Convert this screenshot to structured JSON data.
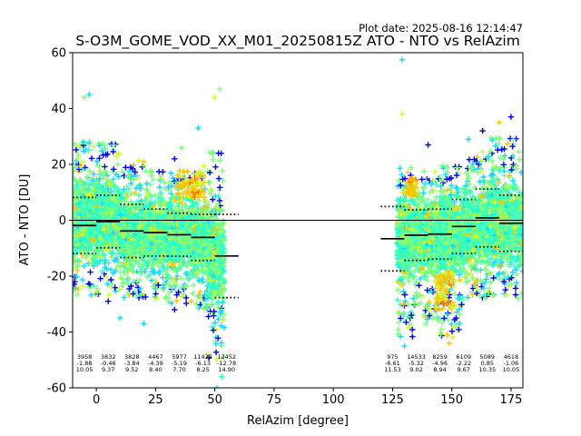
{
  "chart_data": {
    "type": "scatter",
    "title": "S-O3M_GOME_VOD_XX_M01_20250815Z ATO - NTO vs RelAzim",
    "plot_date": "Plot date: 2025-08-16 12:14:47",
    "xlabel": "RelAzim [degree]",
    "ylabel": "ATO - NTO [DU]",
    "xlim": [
      -10,
      180
    ],
    "ylim": [
      -60,
      60
    ],
    "xticks": [
      0,
      25,
      50,
      75,
      100,
      125,
      150,
      175
    ],
    "yticks": [
      -60,
      -40,
      -20,
      0,
      20,
      40,
      60
    ],
    "grid": false,
    "marker": "+",
    "colormap": [
      "#00007f",
      "#0000ff",
      "#0080ff",
      "#15d8ff",
      "#28ffce",
      "#7dff7a",
      "#ceff28",
      "#ffc400",
      "#ff6800",
      "#7f0000"
    ],
    "scatter_envelopes": [
      {
        "x": [
          -10,
          0
        ],
        "center": 0,
        "low": -27,
        "high": 30,
        "spread": 0.4
      },
      {
        "x": [
          0,
          10
        ],
        "center": 0,
        "low": -27,
        "high": 28,
        "spread": 0.4
      },
      {
        "x": [
          10,
          20
        ],
        "center": -4,
        "low": -28,
        "high": 22,
        "spread": 0.4
      },
      {
        "x": [
          20,
          30
        ],
        "center": -4,
        "low": -28,
        "high": 18,
        "spread": 0.4
      },
      {
        "x": [
          30,
          40
        ],
        "center": -5,
        "low": -30,
        "high": 18,
        "spread": 0.4
      },
      {
        "x": [
          40,
          47
        ],
        "center": -6,
        "low": -32,
        "high": 20,
        "spread": 0.4
      },
      {
        "x": [
          47,
          54
        ],
        "center": -13,
        "low": -50,
        "high": 25,
        "spread": 0.4
      },
      {
        "x": [
          127,
          135
        ],
        "center": -6,
        "low": -42,
        "high": 20,
        "spread": 0.4
      },
      {
        "x": [
          135,
          145
        ],
        "center": -5,
        "low": -36,
        "high": 18,
        "spread": 0.4
      },
      {
        "x": [
          145,
          155
        ],
        "center": -5,
        "low": -42,
        "high": 20,
        "spread": 0.4
      },
      {
        "x": [
          155,
          165
        ],
        "center": -2,
        "low": -28,
        "high": 25,
        "spread": 0.4
      },
      {
        "x": [
          165,
          180
        ],
        "center": -1,
        "low": -27,
        "high": 30,
        "spread": 0.4
      }
    ],
    "outliers": [
      {
        "x": 129,
        "y": 57.5,
        "color": "#15d8ff"
      },
      {
        "x": -5,
        "y": 44,
        "color": "#7dff7a"
      },
      {
        "x": -3,
        "y": 45,
        "color": "#15d8ff"
      },
      {
        "x": 52,
        "y": 47,
        "color": "#7dff7a"
      },
      {
        "x": 50,
        "y": 44,
        "color": "#ceff28"
      },
      {
        "x": 43,
        "y": 33,
        "color": "#15d8ff"
      },
      {
        "x": 129,
        "y": 38,
        "color": "#ceff28"
      },
      {
        "x": 140,
        "y": 27,
        "color": "#0000ff"
      },
      {
        "x": 163,
        "y": 32,
        "color": "#00007f"
      },
      {
        "x": 175,
        "y": 37,
        "color": "#0000ff"
      },
      {
        "x": 170,
        "y": 35,
        "color": "#ffc400"
      },
      {
        "x": 139,
        "y": -37,
        "color": "#7dff7a"
      },
      {
        "x": 149,
        "y": -44,
        "color": "#ffc400"
      },
      {
        "x": 148,
        "y": -41,
        "color": "#ffc400"
      },
      {
        "x": 130,
        "y": -45,
        "color": "#15d8ff"
      },
      {
        "x": 133,
        "y": -34,
        "color": "#0000ff"
      },
      {
        "x": 10,
        "y": -35,
        "color": "#15d8ff"
      },
      {
        "x": 5,
        "y": -29,
        "color": "#0000ff"
      },
      {
        "x": 33,
        "y": -32,
        "color": "#0000ff"
      },
      {
        "x": 40,
        "y": -29,
        "color": "#ffc400"
      },
      {
        "x": 51,
        "y": -60,
        "color": "#15d8ff"
      },
      {
        "x": 53,
        "y": -56,
        "color": "#28ffce"
      },
      {
        "x": 20,
        "y": -37,
        "color": "#15d8ff"
      },
      {
        "x": 178,
        "y": -28,
        "color": "#7dff7a"
      },
      {
        "x": 167,
        "y": -27,
        "color": "#ceff28"
      },
      {
        "x": 33,
        "y": 22,
        "color": "#0000ff"
      },
      {
        "x": 36,
        "y": 26,
        "color": "#7dff7a"
      },
      {
        "x": 20,
        "y": 21,
        "color": "#ffc400"
      },
      {
        "x": 9,
        "y": 24,
        "color": "#ceff28"
      },
      {
        "x": 157,
        "y": 29,
        "color": "#15d8ff"
      }
    ],
    "yellow_clusters": [
      {
        "x": [
          34,
          46
        ],
        "y": [
          8,
          18
        ]
      },
      {
        "x": [
          143,
          151
        ],
        "y": [
          -32,
          -18
        ]
      },
      {
        "x": [
          131,
          135
        ],
        "y": [
          9,
          15
        ]
      }
    ],
    "bins": [
      {
        "x_start": -10,
        "x_end": 0,
        "n": "3958",
        "mean": -1.88,
        "std": 10.05,
        "mean_label": "-1.88",
        "std_label": "10.05"
      },
      {
        "x_start": 0,
        "x_end": 10,
        "n": "3832",
        "mean": -0.46,
        "std": 9.37,
        "mean_label": "-0.46",
        "std_label": "9.37"
      },
      {
        "x_start": 10,
        "x_end": 20,
        "n": "3828",
        "mean": -3.84,
        "std": 9.52,
        "mean_label": "-3.84",
        "std_label": "9.52"
      },
      {
        "x_start": 20,
        "x_end": 30,
        "n": "4467",
        "mean": -4.39,
        "std": 8.4,
        "mean_label": "-4.39",
        "std_label": "8.40"
      },
      {
        "x_start": 30,
        "x_end": 40,
        "n": "5977",
        "mean": -5.19,
        "std": 7.7,
        "mean_label": "-5.19",
        "std_label": "7.70"
      },
      {
        "x_start": 40,
        "x_end": 50,
        "n": "11433",
        "mean": -6.13,
        "std": 8.25,
        "mean_label": "-6.13",
        "std_label": "8.25"
      },
      {
        "x_start": 50,
        "x_end": 60,
        "n": "12452",
        "mean": -12.78,
        "std": 14.9,
        "mean_label": "-12.78",
        "std_label": "14.90"
      },
      {
        "x_start": 120,
        "x_end": 130,
        "n": "975",
        "mean": -6.61,
        "std": 11.53,
        "mean_label": "-6.61",
        "std_label": "11.53"
      },
      {
        "x_start": 130,
        "x_end": 140,
        "n": "14533",
        "mean": -5.32,
        "std": 9.02,
        "mean_label": "-5.32",
        "std_label": "9.02"
      },
      {
        "x_start": 140,
        "x_end": 150,
        "n": "8259",
        "mean": -4.96,
        "std": 8.94,
        "mean_label": "-4.96",
        "std_label": "8.94"
      },
      {
        "x_start": 150,
        "x_end": 160,
        "n": "6109",
        "mean": -2.22,
        "std": 9.67,
        "mean_label": "-2.22",
        "std_label": "9.67"
      },
      {
        "x_start": 160,
        "x_end": 170,
        "n": "5089",
        "mean": 0.85,
        "std": 10.35,
        "mean_label": "0.85",
        "std_label": "10.35"
      },
      {
        "x_start": 170,
        "x_end": 180,
        "n": "4618",
        "mean": -1.06,
        "std": 10.05,
        "mean_label": "-1.06",
        "std_label": "10.05"
      }
    ],
    "zero_line": 0
  }
}
